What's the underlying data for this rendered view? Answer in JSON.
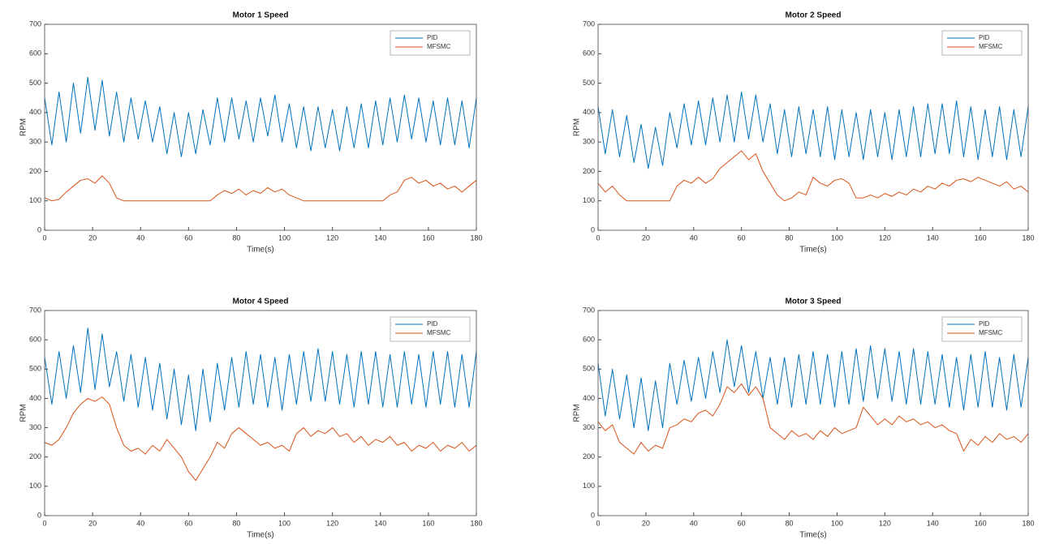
{
  "chart_data": [
    {
      "type": "line",
      "title": "Motor 1 Speed",
      "xlabel": "Time(s)",
      "ylabel": "RPM",
      "xlim": [
        0,
        180
      ],
      "ylim": [
        0,
        700
      ],
      "xticks": [
        0,
        20,
        40,
        60,
        80,
        100,
        120,
        140,
        160,
        180
      ],
      "yticks": [
        0,
        100,
        200,
        300,
        400,
        500,
        600,
        700
      ],
      "grid": false,
      "legend": "upper right",
      "x": [
        0,
        3,
        6,
        9,
        12,
        15,
        18,
        21,
        24,
        27,
        30,
        33,
        36,
        39,
        42,
        45,
        48,
        51,
        54,
        57,
        60,
        63,
        66,
        69,
        72,
        75,
        78,
        81,
        84,
        87,
        90,
        93,
        96,
        99,
        102,
        105,
        108,
        111,
        114,
        117,
        120,
        123,
        126,
        129,
        132,
        135,
        138,
        141,
        144,
        147,
        150,
        153,
        156,
        159,
        162,
        165,
        168,
        171,
        174,
        177,
        180
      ],
      "series": [
        {
          "name": "PID",
          "color": "#0072BD",
          "values": [
            450,
            290,
            470,
            300,
            500,
            330,
            520,
            340,
            510,
            320,
            470,
            300,
            450,
            310,
            440,
            300,
            420,
            260,
            400,
            250,
            400,
            260,
            410,
            290,
            450,
            300,
            450,
            310,
            440,
            300,
            450,
            320,
            460,
            300,
            430,
            280,
            420,
            270,
            420,
            280,
            410,
            270,
            420,
            280,
            430,
            280,
            440,
            290,
            450,
            300,
            460,
            310,
            450,
            300,
            440,
            290,
            450,
            290,
            440,
            280,
            450
          ]
        },
        {
          "name": "MFSMC",
          "color": "#D95319",
          "values": [
            110,
            100,
            105,
            130,
            150,
            170,
            175,
            160,
            185,
            160,
            110,
            100,
            100,
            100,
            100,
            100,
            100,
            100,
            100,
            100,
            100,
            100,
            100,
            100,
            120,
            135,
            125,
            140,
            120,
            135,
            125,
            145,
            130,
            140,
            120,
            110,
            100,
            100,
            100,
            100,
            100,
            100,
            100,
            100,
            100,
            100,
            100,
            100,
            120,
            130,
            170,
            180,
            160,
            170,
            150,
            160,
            140,
            150,
            130,
            150,
            170
          ]
        }
      ]
    },
    {
      "type": "line",
      "title": "Motor 2 Speed",
      "xlabel": "Time(s)",
      "ylabel": "RPM",
      "xlim": [
        0,
        180
      ],
      "ylim": [
        0,
        700
      ],
      "xticks": [
        0,
        20,
        40,
        60,
        80,
        100,
        120,
        140,
        160,
        180
      ],
      "yticks": [
        0,
        100,
        200,
        300,
        400,
        500,
        600,
        700
      ],
      "grid": false,
      "legend": "upper right",
      "x": [
        0,
        3,
        6,
        9,
        12,
        15,
        18,
        21,
        24,
        27,
        30,
        33,
        36,
        39,
        42,
        45,
        48,
        51,
        54,
        57,
        60,
        63,
        66,
        69,
        72,
        75,
        78,
        81,
        84,
        87,
        90,
        93,
        96,
        99,
        102,
        105,
        108,
        111,
        114,
        117,
        120,
        123,
        126,
        129,
        132,
        135,
        138,
        141,
        144,
        147,
        150,
        153,
        156,
        159,
        162,
        165,
        168,
        171,
        174,
        177,
        180
      ],
      "series": [
        {
          "name": "PID",
          "color": "#0072BD",
          "values": [
            420,
            260,
            410,
            250,
            390,
            230,
            360,
            210,
            350,
            220,
            400,
            280,
            430,
            290,
            440,
            290,
            450,
            300,
            460,
            300,
            470,
            310,
            460,
            300,
            430,
            260,
            410,
            250,
            420,
            260,
            410,
            250,
            420,
            240,
            410,
            250,
            400,
            240,
            410,
            250,
            400,
            240,
            410,
            250,
            420,
            250,
            430,
            260,
            430,
            260,
            440,
            250,
            420,
            240,
            410,
            250,
            420,
            240,
            410,
            250,
            420
          ]
        },
        {
          "name": "MFSMC",
          "color": "#D95319",
          "values": [
            160,
            130,
            150,
            120,
            100,
            100,
            100,
            100,
            100,
            100,
            100,
            150,
            170,
            160,
            180,
            160,
            175,
            210,
            230,
            250,
            270,
            240,
            260,
            200,
            160,
            120,
            100,
            110,
            130,
            120,
            180,
            160,
            150,
            170,
            175,
            160,
            110,
            110,
            120,
            110,
            125,
            115,
            130,
            120,
            140,
            130,
            150,
            140,
            160,
            150,
            170,
            175,
            165,
            180,
            170,
            160,
            150,
            165,
            140,
            150,
            130
          ]
        }
      ]
    },
    {
      "type": "line",
      "title": "Motor 4 Speed",
      "xlabel": "Time(s)",
      "ylabel": "RPM",
      "xlim": [
        0,
        180
      ],
      "ylim": [
        0,
        700
      ],
      "xticks": [
        0,
        20,
        40,
        60,
        80,
        100,
        120,
        140,
        160,
        180
      ],
      "yticks": [
        0,
        100,
        200,
        300,
        400,
        500,
        600,
        700
      ],
      "grid": false,
      "legend": "upper right",
      "x": [
        0,
        3,
        6,
        9,
        12,
        15,
        18,
        21,
        24,
        27,
        30,
        33,
        36,
        39,
        42,
        45,
        48,
        51,
        54,
        57,
        60,
        63,
        66,
        69,
        72,
        75,
        78,
        81,
        84,
        87,
        90,
        93,
        96,
        99,
        102,
        105,
        108,
        111,
        114,
        117,
        120,
        123,
        126,
        129,
        132,
        135,
        138,
        141,
        144,
        147,
        150,
        153,
        156,
        159,
        162,
        165,
        168,
        171,
        174,
        177,
        180
      ],
      "series": [
        {
          "name": "PID",
          "color": "#0072BD",
          "values": [
            540,
            380,
            560,
            400,
            580,
            420,
            640,
            430,
            620,
            440,
            560,
            390,
            550,
            370,
            540,
            360,
            520,
            330,
            500,
            310,
            480,
            290,
            500,
            320,
            520,
            360,
            540,
            370,
            560,
            380,
            550,
            370,
            540,
            360,
            550,
            380,
            560,
            390,
            570,
            390,
            560,
            380,
            550,
            370,
            560,
            380,
            560,
            370,
            550,
            370,
            560,
            380,
            550,
            370,
            560,
            380,
            560,
            370,
            550,
            370,
            560
          ]
        },
        {
          "name": "MFSMC",
          "color": "#D95319",
          "values": [
            250,
            240,
            260,
            300,
            350,
            380,
            400,
            390,
            405,
            380,
            300,
            240,
            220,
            230,
            210,
            240,
            220,
            260,
            230,
            200,
            150,
            120,
            160,
            200,
            250,
            230,
            280,
            300,
            280,
            260,
            240,
            250,
            230,
            240,
            220,
            280,
            300,
            270,
            290,
            280,
            300,
            270,
            280,
            250,
            270,
            240,
            260,
            250,
            270,
            240,
            250,
            220,
            240,
            230,
            250,
            220,
            240,
            230,
            250,
            220,
            240
          ]
        }
      ]
    },
    {
      "type": "line",
      "title": "Motor 3 Speed",
      "xlabel": "Time(s)",
      "ylabel": "RPM",
      "xlim": [
        0,
        180
      ],
      "ylim": [
        0,
        700
      ],
      "xticks": [
        0,
        20,
        40,
        60,
        80,
        100,
        120,
        140,
        160,
        180
      ],
      "yticks": [
        0,
        100,
        200,
        300,
        400,
        500,
        600,
        700
      ],
      "grid": false,
      "legend": "upper right",
      "x": [
        0,
        3,
        6,
        9,
        12,
        15,
        18,
        21,
        24,
        27,
        30,
        33,
        36,
        39,
        42,
        45,
        48,
        51,
        54,
        57,
        60,
        63,
        66,
        69,
        72,
        75,
        78,
        81,
        84,
        87,
        90,
        93,
        96,
        99,
        102,
        105,
        108,
        111,
        114,
        117,
        120,
        123,
        126,
        129,
        132,
        135,
        138,
        141,
        144,
        147,
        150,
        153,
        156,
        159,
        162,
        165,
        168,
        171,
        174,
        177,
        180
      ],
      "series": [
        {
          "name": "PID",
          "color": "#0072BD",
          "values": [
            520,
            340,
            500,
            330,
            480,
            300,
            470,
            290,
            460,
            300,
            520,
            380,
            530,
            390,
            540,
            400,
            560,
            420,
            600,
            440,
            580,
            420,
            560,
            400,
            540,
            380,
            540,
            370,
            550,
            380,
            560,
            380,
            550,
            370,
            560,
            380,
            570,
            390,
            580,
            400,
            570,
            390,
            560,
            380,
            570,
            380,
            560,
            380,
            550,
            370,
            540,
            360,
            550,
            370,
            560,
            370,
            540,
            360,
            550,
            370,
            540
          ]
        },
        {
          "name": "MFSMC",
          "color": "#D95319",
          "values": [
            320,
            290,
            310,
            250,
            230,
            210,
            250,
            220,
            240,
            230,
            300,
            310,
            330,
            320,
            350,
            360,
            340,
            380,
            440,
            420,
            450,
            410,
            440,
            400,
            300,
            280,
            260,
            290,
            270,
            280,
            260,
            290,
            270,
            300,
            280,
            290,
            300,
            370,
            340,
            310,
            330,
            310,
            340,
            320,
            330,
            310,
            320,
            300,
            310,
            290,
            280,
            220,
            260,
            240,
            270,
            250,
            280,
            260,
            270,
            250,
            280
          ]
        }
      ]
    }
  ]
}
